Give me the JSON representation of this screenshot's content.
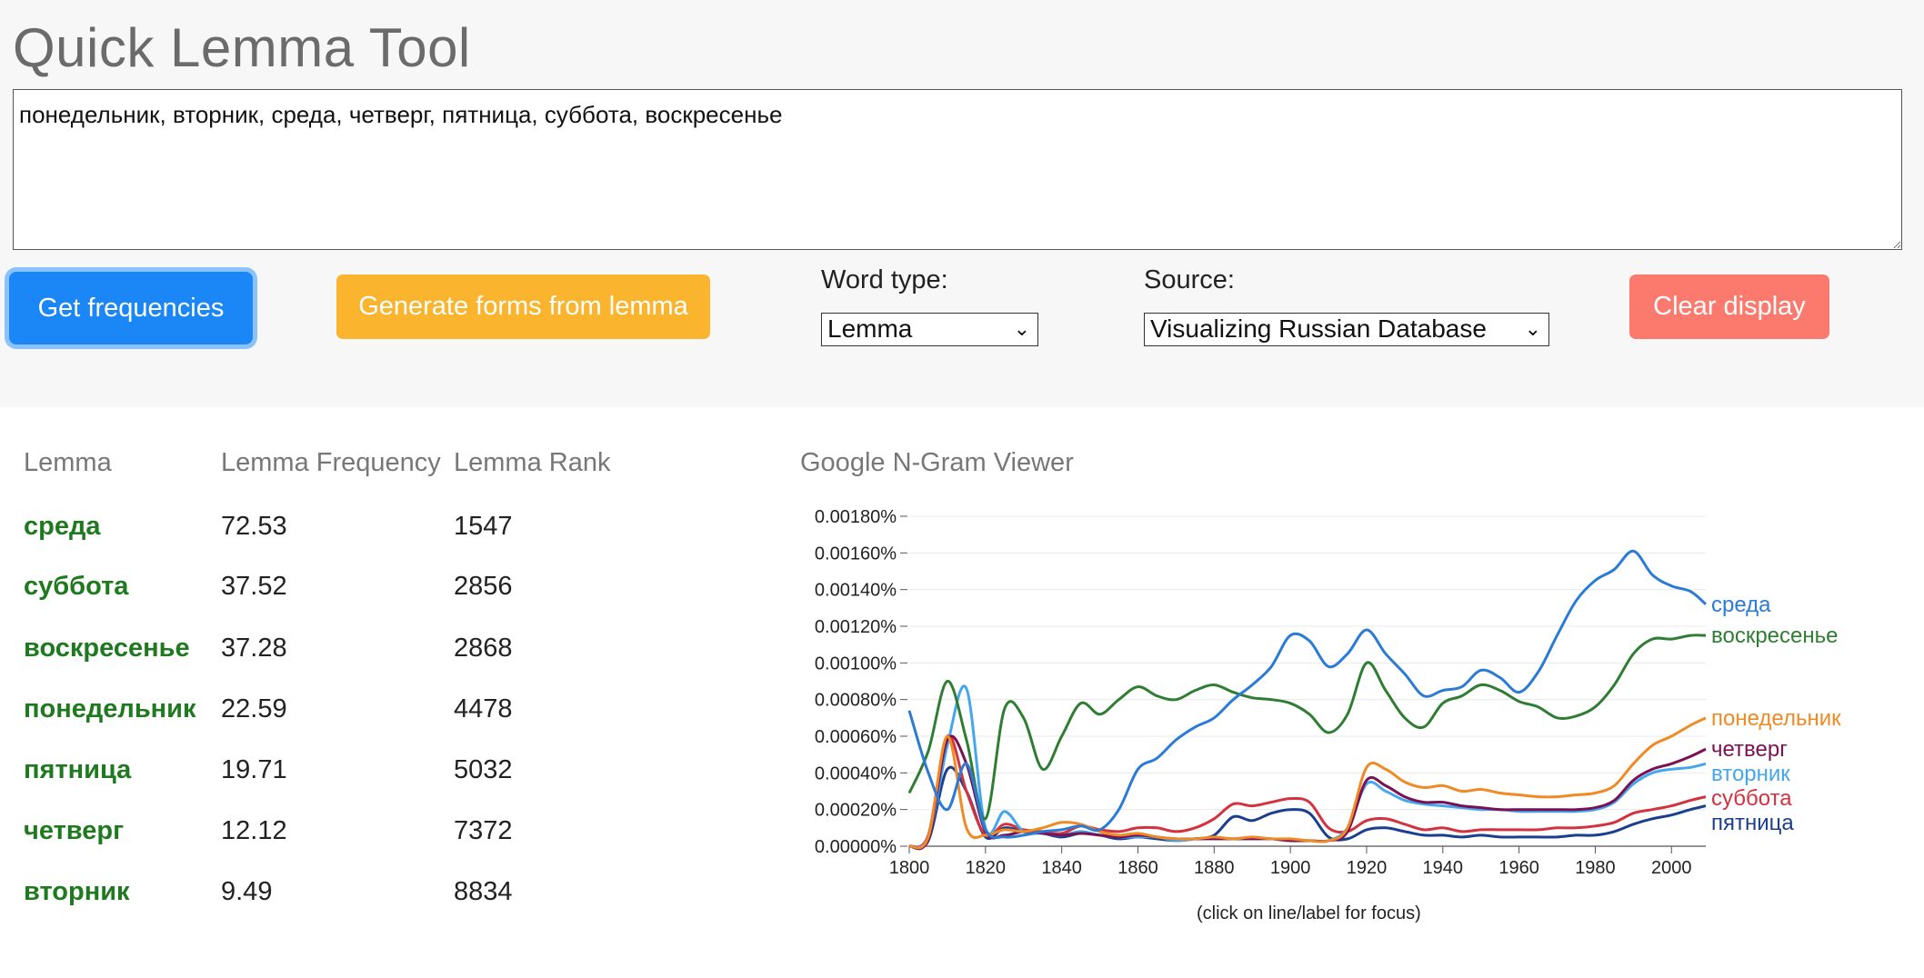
{
  "app": {
    "title": "Quick Lemma Tool"
  },
  "query": {
    "value": "понедельник, вторник, среда, четверг, пятница, суббота, воскресенье"
  },
  "controls": {
    "get_frequencies": "Get frequencies",
    "generate_forms": "Generate forms from lemma",
    "clear_display": "Clear display",
    "word_type_label": "Word type:",
    "word_type_value": "Lemma",
    "source_label": "Source:",
    "source_value": "Visualizing Russian Database"
  },
  "table": {
    "headers": [
      "Lemma",
      "Lemma Frequency",
      "Lemma Rank"
    ],
    "rows": [
      {
        "lemma": "среда",
        "freq": "72.53",
        "rank": "1547"
      },
      {
        "lemma": "суббота",
        "freq": "37.52",
        "rank": "2856"
      },
      {
        "lemma": "воскресенье",
        "freq": "37.28",
        "rank": "2868"
      },
      {
        "lemma": "понедельник",
        "freq": "22.59",
        "rank": "4478"
      },
      {
        "lemma": "пятница",
        "freq": "19.71",
        "rank": "5032"
      },
      {
        "lemma": "четверг",
        "freq": "12.12",
        "rank": "7372"
      },
      {
        "lemma": "вторник",
        "freq": "9.49",
        "rank": "8834"
      }
    ]
  },
  "ngram": {
    "title": "Google N-Gram Viewer",
    "note": "(click on line/label for focus)"
  },
  "chart_data": {
    "type": "line",
    "title": "Google N-Gram Viewer",
    "xlabel": "",
    "ylabel": "",
    "xlim": [
      1800,
      2009
    ],
    "ylim": [
      0,
      0.0018
    ],
    "y_ticks": [
      "0.00000%",
      "0.00020%",
      "0.00040%",
      "0.00060%",
      "0.00080%",
      "0.00100%",
      "0.00120%",
      "0.00140%",
      "0.00160%",
      "0.00180%"
    ],
    "x_ticks": [
      1800,
      1820,
      1840,
      1860,
      1880,
      1900,
      1920,
      1940,
      1960,
      1980,
      2000
    ],
    "grid": true,
    "legend": "right, labels at line ends",
    "x": [
      1800,
      1805,
      1810,
      1815,
      1820,
      1825,
      1830,
      1835,
      1840,
      1845,
      1850,
      1855,
      1860,
      1865,
      1870,
      1875,
      1880,
      1885,
      1890,
      1895,
      1900,
      1905,
      1910,
      1915,
      1920,
      1925,
      1930,
      1935,
      1940,
      1945,
      1950,
      1955,
      1960,
      1965,
      1970,
      1975,
      1980,
      1985,
      1990,
      1995,
      2000,
      2005,
      2009
    ],
    "series": [
      {
        "name": "среда",
        "color": "#2a7bd6",
        "values": [
          0.00074,
          0.0004,
          0.0002,
          0.00045,
          9e-05,
          5e-05,
          6e-05,
          8e-05,
          9e-05,
          0.00011,
          9e-05,
          0.0002,
          0.00042,
          0.00048,
          0.00058,
          0.00065,
          0.0007,
          0.0008,
          0.00088,
          0.00098,
          0.00115,
          0.00112,
          0.00098,
          0.00105,
          0.00118,
          0.00105,
          0.00094,
          0.00082,
          0.00085,
          0.00087,
          0.00096,
          0.00092,
          0.00084,
          0.00095,
          0.00115,
          0.00134,
          0.00145,
          0.00151,
          0.00161,
          0.00148,
          0.00142,
          0.00139,
          0.00132
        ]
      },
      {
        "name": "воскресенье",
        "color": "#2f7d32",
        "values": [
          0.00029,
          0.00052,
          0.0009,
          0.00058,
          0.00015,
          0.00075,
          0.0007,
          0.00042,
          0.0006,
          0.00078,
          0.00072,
          0.0008,
          0.00087,
          0.00082,
          0.0008,
          0.00085,
          0.00088,
          0.00084,
          0.00081,
          0.0008,
          0.00078,
          0.00072,
          0.00062,
          0.00072,
          0.001,
          0.00085,
          0.0007,
          0.00065,
          0.00078,
          0.00082,
          0.00088,
          0.00085,
          0.00079,
          0.00076,
          0.0007,
          0.00071,
          0.00076,
          0.00088,
          0.00105,
          0.00113,
          0.00113,
          0.00115,
          0.00115
        ]
      },
      {
        "name": "понедельник",
        "color": "#f08a24",
        "values": [
          0.0,
          5e-05,
          0.0006,
          0.0001,
          6e-05,
          9e-05,
          8e-05,
          0.0001,
          0.00013,
          0.00012,
          8e-05,
          6e-05,
          7e-05,
          5e-05,
          4e-05,
          4e-05,
          5e-05,
          4e-05,
          5e-05,
          4e-05,
          4e-05,
          3e-05,
          3e-05,
          0.0001,
          0.00043,
          0.00042,
          0.00035,
          0.00032,
          0.00033,
          0.0003,
          0.00031,
          0.00029,
          0.00028,
          0.00027,
          0.00027,
          0.00028,
          0.00029,
          0.00033,
          0.00045,
          0.00055,
          0.0006,
          0.00066,
          0.0007
        ]
      },
      {
        "name": "четверг",
        "color": "#7a1153",
        "values": [
          0.0,
          4e-05,
          0.00058,
          0.00045,
          8e-05,
          6e-05,
          8e-05,
          7e-05,
          6e-05,
          7e-05,
          6e-05,
          5e-05,
          6e-05,
          5e-05,
          4e-05,
          4e-05,
          4e-05,
          4e-05,
          4e-05,
          4e-05,
          3e-05,
          3e-05,
          3e-05,
          8e-05,
          0.00036,
          0.00033,
          0.00027,
          0.00024,
          0.00024,
          0.00022,
          0.00021,
          0.0002,
          0.0002,
          0.0002,
          0.0002,
          0.0002,
          0.00021,
          0.00025,
          0.00036,
          0.00042,
          0.00045,
          0.00049,
          0.00053
        ]
      },
      {
        "name": "вторник",
        "color": "#45a6f0",
        "values": [
          0.0,
          5e-05,
          0.00055,
          0.00086,
          0.0001,
          0.00019,
          8e-05,
          7e-05,
          6e-05,
          8e-05,
          6e-05,
          5e-05,
          5e-05,
          5e-05,
          3e-05,
          4e-05,
          4e-05,
          4e-05,
          4e-05,
          4e-05,
          3e-05,
          3e-05,
          3e-05,
          0.0001,
          0.00034,
          0.0003,
          0.00025,
          0.00023,
          0.00022,
          0.00021,
          0.0002,
          0.0002,
          0.00019,
          0.00019,
          0.00019,
          0.00019,
          0.0002,
          0.00024,
          0.00034,
          0.0004,
          0.00042,
          0.00043,
          0.00045
        ]
      },
      {
        "name": "суббота",
        "color": "#d3323f",
        "values": [
          0.0,
          6e-05,
          0.0006,
          0.0003,
          6e-05,
          0.00012,
          9e-05,
          8e-05,
          7e-05,
          0.00011,
          9e-05,
          8e-05,
          0.0001,
          0.0001,
          8e-05,
          0.0001,
          0.00015,
          0.00023,
          0.00022,
          0.00024,
          0.00026,
          0.00024,
          0.0001,
          8e-05,
          0.00014,
          0.00015,
          0.00012,
          9e-05,
          0.0001,
          8e-05,
          9e-05,
          9e-05,
          9e-05,
          9e-05,
          0.0001,
          0.0001,
          0.00011,
          0.00013,
          0.00018,
          0.0002,
          0.00022,
          0.00025,
          0.00027
        ]
      },
      {
        "name": "пятница",
        "color": "#1b3f8f",
        "values": [
          0.0,
          3e-05,
          0.00042,
          0.0003,
          5e-05,
          0.0001,
          8e-05,
          7e-05,
          5e-05,
          7e-05,
          6e-05,
          4e-05,
          5e-05,
          4e-05,
          3e-05,
          4e-05,
          6e-05,
          0.00016,
          0.00014,
          0.00018,
          0.0002,
          0.00018,
          5e-05,
          4e-05,
          9e-05,
          0.0001,
          8e-05,
          6e-05,
          6e-05,
          5e-05,
          6e-05,
          5e-05,
          5e-05,
          5e-05,
          5e-05,
          6e-05,
          6e-05,
          8e-05,
          0.00012,
          0.00015,
          0.00017,
          0.0002,
          0.00022
        ]
      }
    ]
  }
}
